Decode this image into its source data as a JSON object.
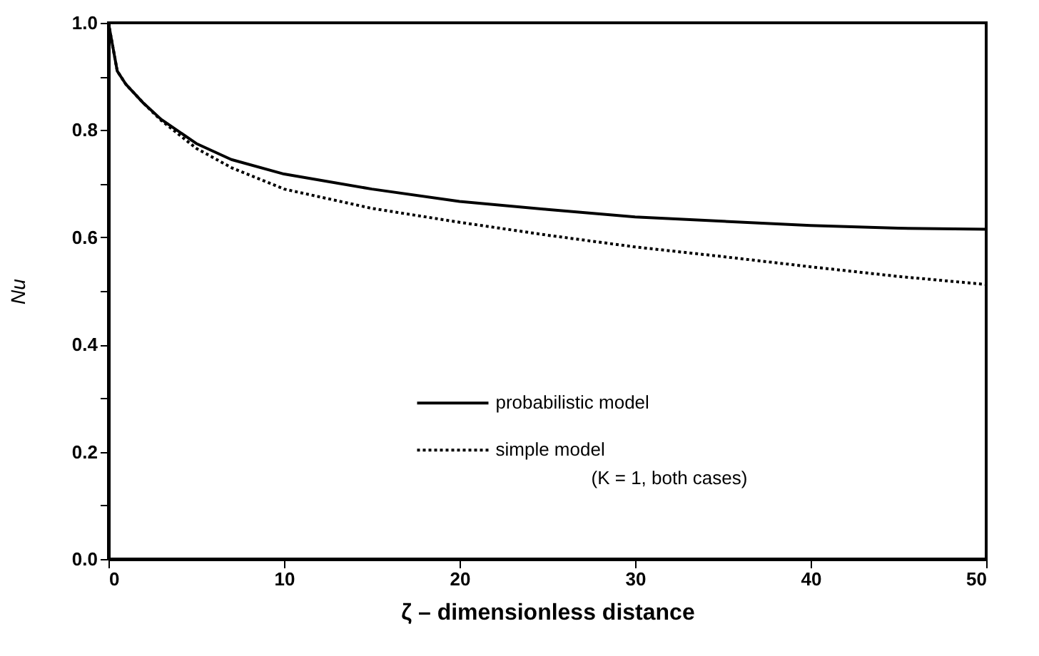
{
  "chart_data": {
    "type": "line",
    "xlabel": "ζ   – dimensionless distance",
    "ylabel": "Nu",
    "annotations": [
      "(K = 1, both cases)"
    ],
    "x": [
      0,
      0.5,
      1,
      2,
      3,
      5,
      7,
      10,
      15,
      20,
      25,
      30,
      35,
      40,
      45,
      50
    ],
    "series": [
      {
        "name": "probabilistic model",
        "color": "#000000",
        "line_style": "solid",
        "values": [
          1.0,
          0.91,
          0.885,
          0.85,
          0.82,
          0.775,
          0.745,
          0.718,
          0.69,
          0.667,
          0.652,
          0.638,
          0.63,
          0.622,
          0.617,
          0.615
        ]
      },
      {
        "name": "simple model",
        "color": "#000000",
        "line_style": "dotted",
        "values": [
          1.0,
          0.91,
          0.885,
          0.85,
          0.818,
          0.766,
          0.73,
          0.69,
          0.654,
          0.628,
          0.604,
          0.582,
          0.564,
          0.545,
          0.527,
          0.512
        ]
      }
    ],
    "xlim": [
      0,
      50
    ],
    "xticks": [
      0,
      10,
      20,
      30,
      40,
      50
    ],
    "ylim": [
      0,
      1
    ],
    "yticks": [
      {
        "value": 0,
        "label": "0.0"
      },
      {
        "value": 0.1,
        "label": null
      },
      0.2,
      {
        "value": 0.3,
        "label": null
      },
      0.4,
      {
        "value": 0.5,
        "label": null
      },
      0.6,
      {
        "value": 0.7,
        "label": null
      },
      0.8,
      {
        "value": 0.9,
        "label": null
      },
      {
        "value": 1,
        "label": "1.0"
      }
    ],
    "legend": "bottom right",
    "grid": false
  }
}
